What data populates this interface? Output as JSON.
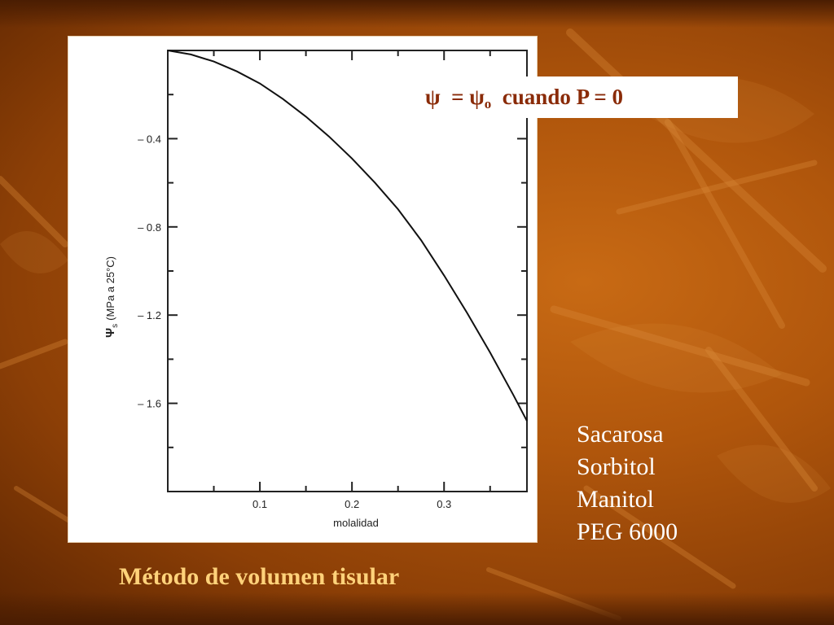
{
  "slide": {
    "formula": {
      "psi": "ψ",
      "equals": "=",
      "psi_sub": "ψ",
      "sub": "o",
      "condition": "cuando P = 0"
    },
    "solutes": [
      "Sacarosa",
      "Sorbitol",
      "Manitol",
      "PEG 6000"
    ],
    "method_title": "Método de volumen tisular"
  },
  "colors": {
    "formula_text": "#8a2b08",
    "method_title": "#ffd27a",
    "solute_text": "#ffffff"
  },
  "chart_data": {
    "type": "line",
    "title": "",
    "xlabel": "molalidad",
    "ylabel_symbol": "Ψ",
    "ylabel_sub": "s",
    "ylabel_text": "(MPa a 25°C)",
    "xlim": [
      0,
      0.39
    ],
    "ylim": [
      -2.0,
      0.0
    ],
    "x_ticks": [
      0.1,
      0.2,
      0.3
    ],
    "x_tick_labels": [
      "0.1",
      "0.2",
      "0.3"
    ],
    "y_ticks": [
      -0.4,
      -0.8,
      -1.2,
      -1.6
    ],
    "y_tick_labels": [
      "– 0.4",
      "– 0.8",
      "– 1.2",
      "– 1.6"
    ],
    "grid": false,
    "series": [
      {
        "x": [
          0.0,
          0.025,
          0.05,
          0.075,
          0.1,
          0.125,
          0.15,
          0.175,
          0.2,
          0.225,
          0.25,
          0.275,
          0.3,
          0.325,
          0.35,
          0.375,
          0.39
        ],
        "y": [
          0.0,
          -0.018,
          -0.05,
          -0.095,
          -0.15,
          -0.22,
          -0.3,
          -0.39,
          -0.49,
          -0.6,
          -0.72,
          -0.86,
          -1.02,
          -1.19,
          -1.37,
          -1.56,
          -1.68
        ]
      }
    ]
  }
}
